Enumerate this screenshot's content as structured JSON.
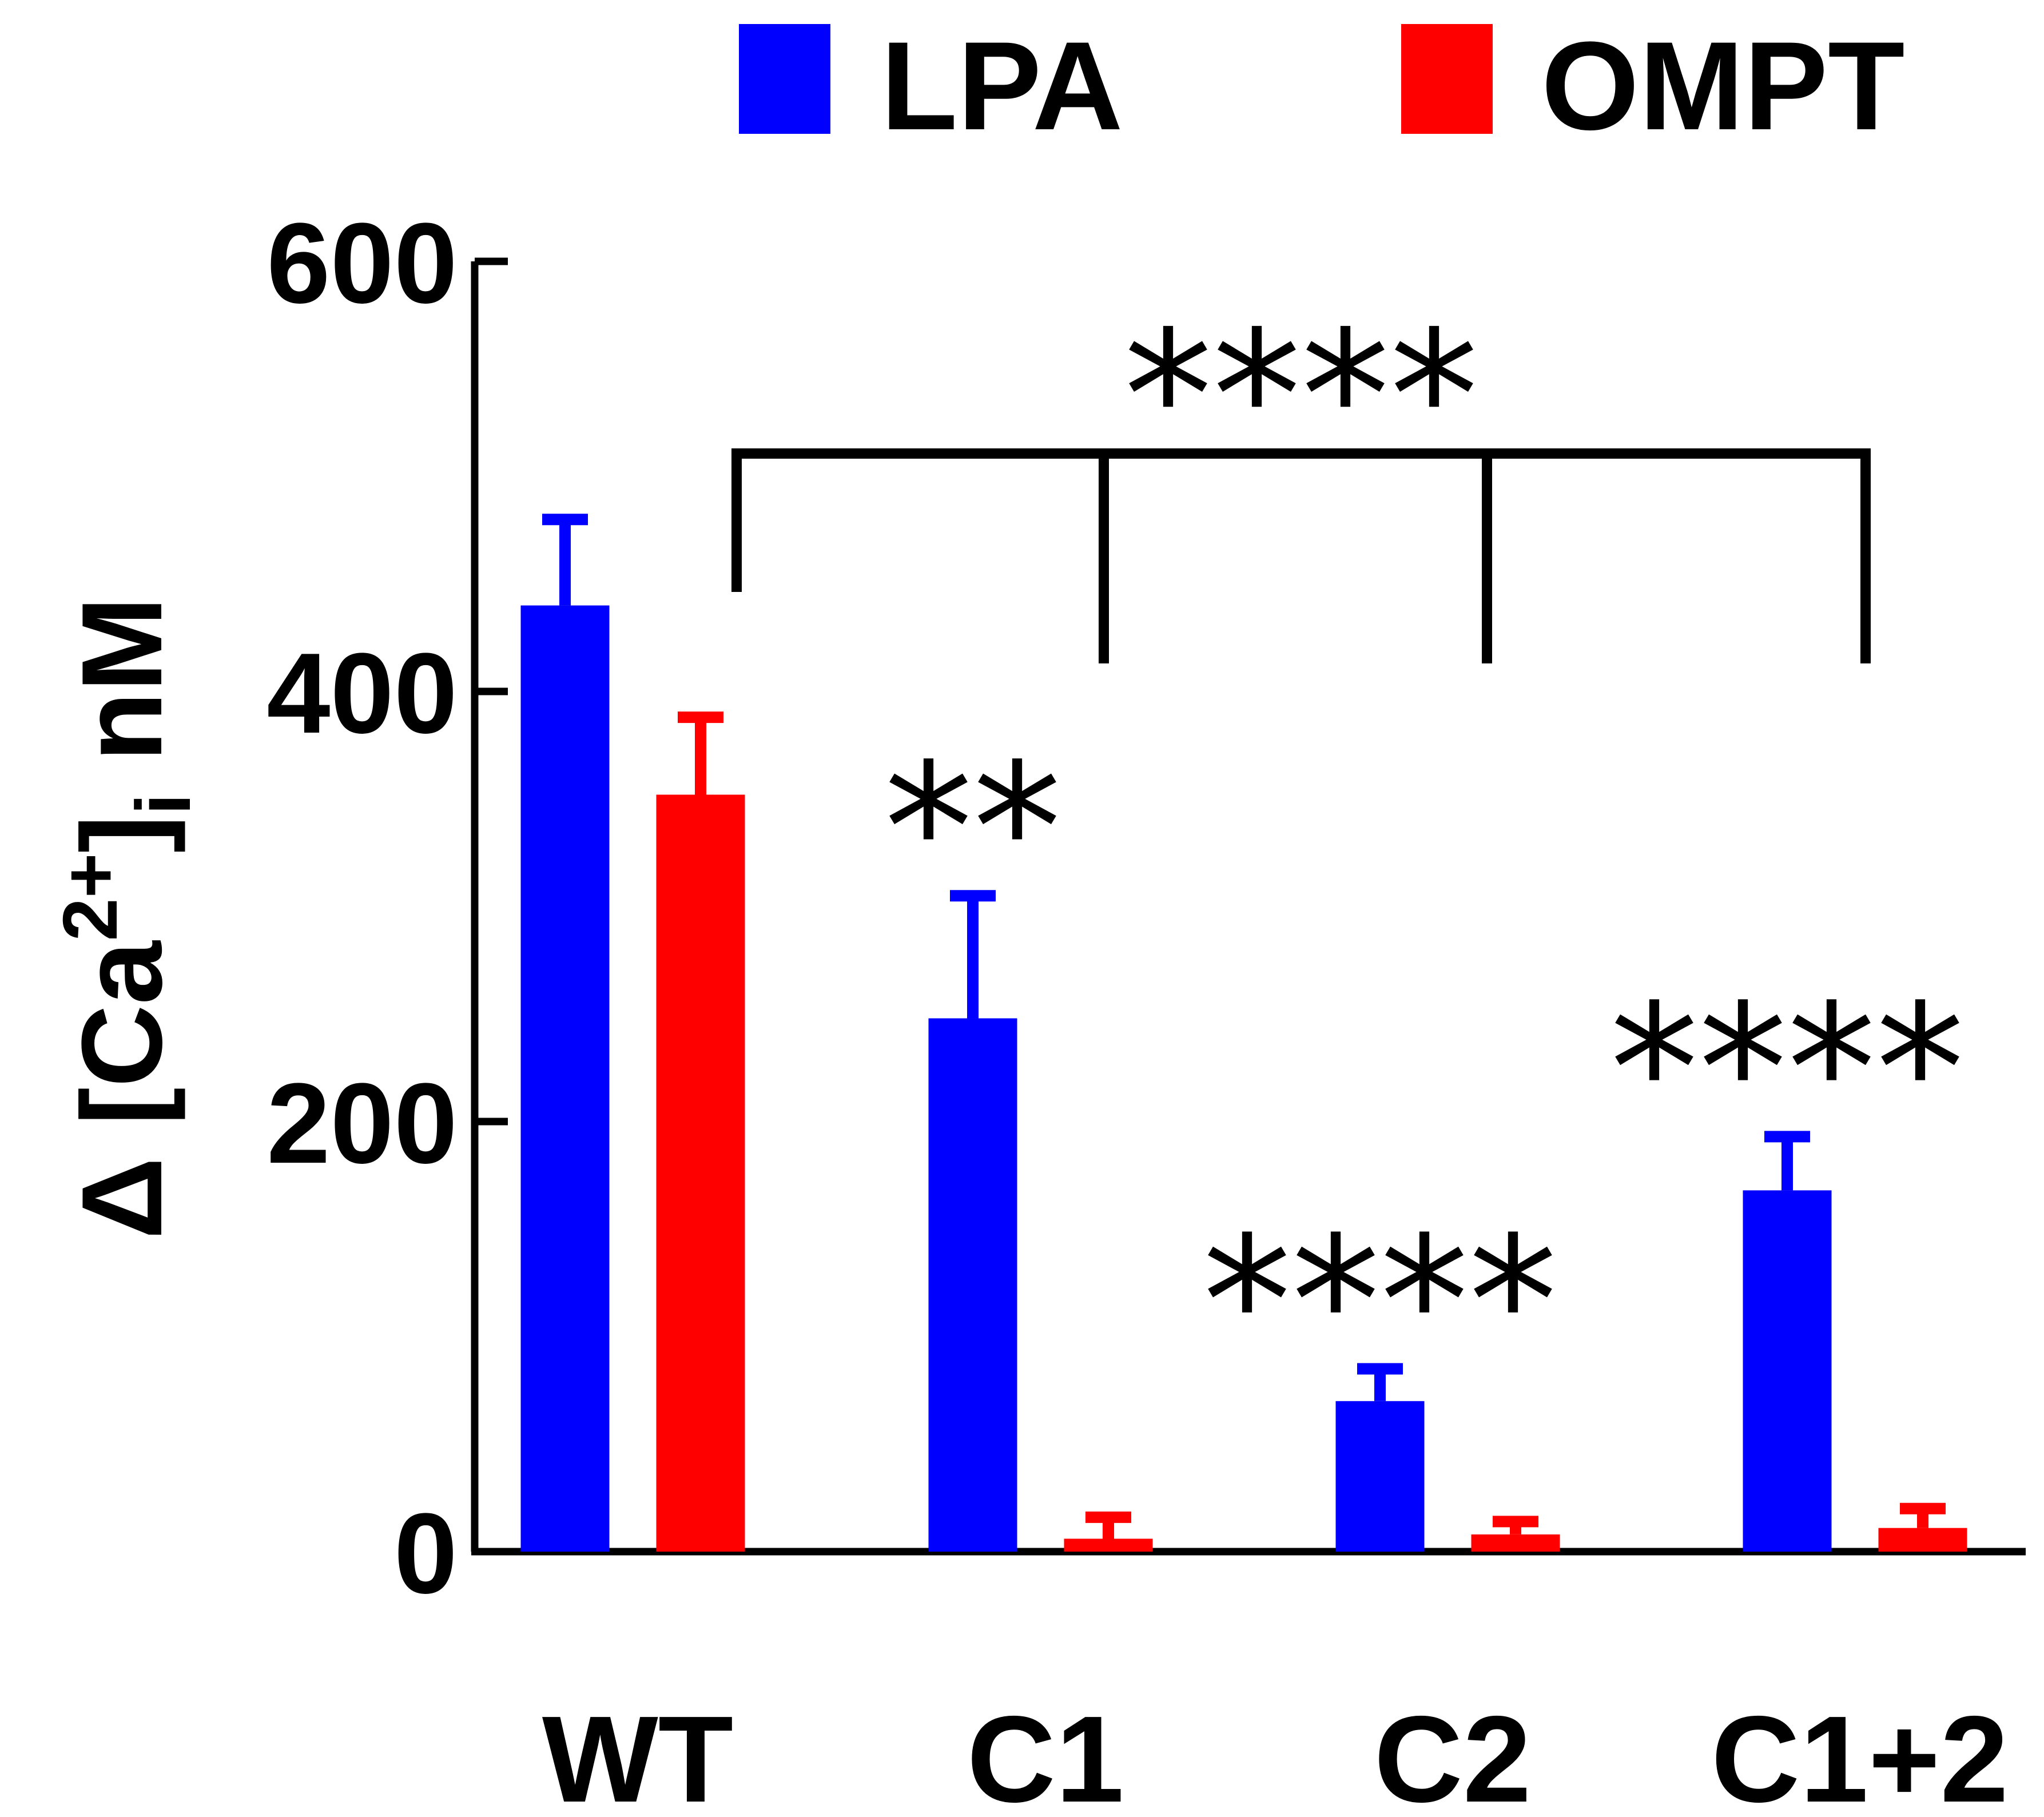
{
  "chart_data": {
    "type": "bar",
    "title": "",
    "xlabel": "",
    "ylabel": "Δ [Ca2+]i nM",
    "ylabel_parts": {
      "delta": "Δ",
      "open": "[Ca",
      "sup": "2+",
      "close": "]",
      "sub": "i",
      "unit": "nM"
    },
    "ylim": [
      0,
      600
    ],
    "yticks": [
      0,
      200,
      400,
      600
    ],
    "ytick_labels": [
      "0",
      "200",
      "400",
      "600"
    ],
    "categories": [
      "WT",
      "C1",
      "C2",
      "C1+2"
    ],
    "series": [
      {
        "name": "LPA",
        "color": "#0000ff",
        "values": [
          440,
          248,
          70,
          168
        ],
        "errors": [
          40,
          57,
          15,
          25
        ]
      },
      {
        "name": "OMPT",
        "color": "#ff0000",
        "values": [
          352,
          6,
          8,
          11
        ],
        "errors": [
          36,
          10,
          6,
          9
        ]
      }
    ],
    "legend": {
      "position": "top",
      "entries": [
        "LPA",
        "OMPT"
      ]
    },
    "annotations": [
      {
        "text": "**",
        "category": "C1",
        "series": "LPA"
      },
      {
        "text": "****",
        "category": "C2",
        "series": "LPA"
      },
      {
        "text": "****",
        "category": "C1+2",
        "series": "LPA"
      },
      {
        "text": "****",
        "bracket_from": "WT",
        "bracket_to": [
          "C1",
          "C2",
          "C1+2"
        ]
      }
    ]
  }
}
